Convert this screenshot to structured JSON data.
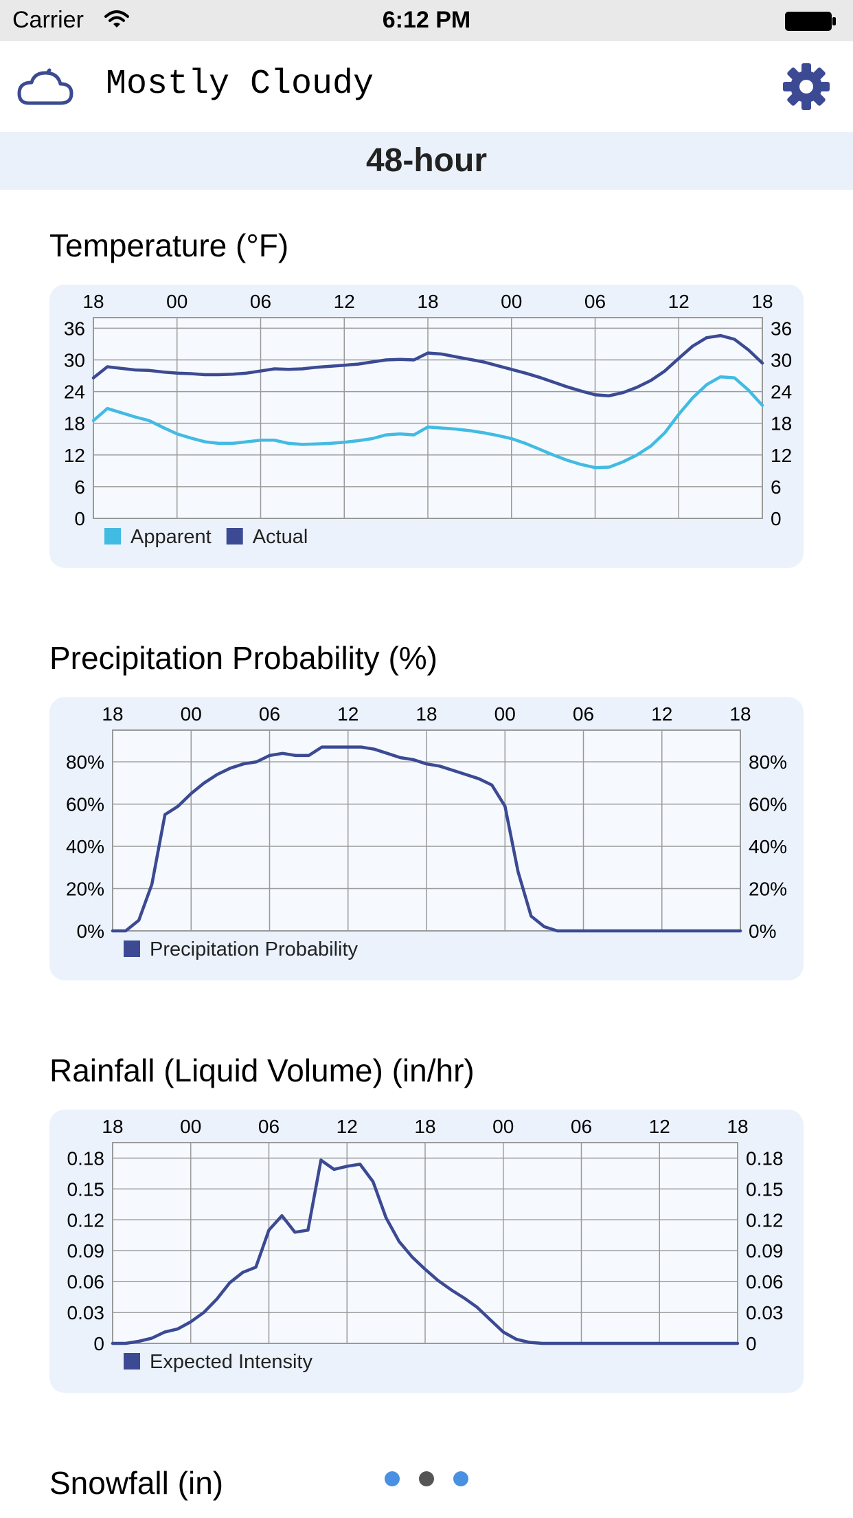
{
  "status_bar": {
    "carrier": "Carrier",
    "time": "6:12 PM"
  },
  "header": {
    "condition": "Mostly Cloudy",
    "weather_icon": "partly-cloudy-night-icon",
    "settings_icon": "gear-icon"
  },
  "period": {
    "label": "48-hour"
  },
  "colors": {
    "accent": "#3b4a92",
    "apparent": "#42bbe2",
    "card": "#ebf2fc",
    "band": "#eaf1fb",
    "dot_active": "#555555",
    "dot_inactive": "#4a90e2"
  },
  "sections": {
    "temperature": {
      "title": "Temperature (°F)"
    },
    "precipitation": {
      "title": "Precipitation Probability (%)"
    },
    "rainfall": {
      "title": "Rainfall (Liquid Volume) (in/hr)"
    },
    "snowfall": {
      "title": "Snowfall (in)"
    }
  },
  "page_indicator": {
    "count": 3,
    "active_index": 1
  },
  "chart_data": [
    {
      "id": "temperature",
      "type": "line",
      "title": "Temperature (°F)",
      "x_tick_labels": [
        "18",
        "00",
        "06",
        "12",
        "18",
        "00",
        "06",
        "12",
        "18"
      ],
      "x_range_hours": [
        0,
        48
      ],
      "y_ticks": [
        0,
        6,
        12,
        18,
        24,
        30,
        36
      ],
      "y_tick_labels": [
        "0",
        "6",
        "12",
        "18",
        "24",
        "30",
        "36"
      ],
      "ylim": [
        0,
        38
      ],
      "legend": [
        "Apparent",
        "Actual"
      ],
      "series": [
        {
          "name": "Apparent",
          "color": "#42bbe2",
          "x": [
            0,
            1,
            2,
            3,
            4,
            5,
            6,
            7,
            8,
            9,
            10,
            11,
            12,
            13,
            14,
            15,
            16,
            17,
            18,
            19,
            20,
            21,
            22,
            23,
            24,
            25,
            26,
            27,
            28,
            29,
            30,
            31,
            32,
            33,
            34,
            35,
            36,
            37,
            38,
            39,
            40,
            41,
            42,
            43,
            44,
            45,
            46,
            47,
            48
          ],
          "y": [
            18.5,
            20.8,
            20,
            19.2,
            18.5,
            17.2,
            16,
            15.2,
            14.5,
            14.2,
            14.2,
            14.5,
            14.8,
            14.8,
            14.2,
            14,
            14.1,
            14.2,
            14.4,
            14.7,
            15.1,
            15.8,
            16,
            15.8,
            17.3,
            17.1,
            16.9,
            16.6,
            16.2,
            15.7,
            15.1,
            14.2,
            13.1,
            12,
            11,
            10.2,
            9.6,
            9.7,
            10.7,
            12,
            13.7,
            16.2,
            19.7,
            22.8,
            25.3,
            26.8,
            26.6,
            24.3,
            21.4
          ]
        },
        {
          "name": "Actual",
          "color": "#3b4a92",
          "x": [
            0,
            1,
            2,
            3,
            4,
            5,
            6,
            7,
            8,
            9,
            10,
            11,
            12,
            13,
            14,
            15,
            16,
            17,
            18,
            19,
            20,
            21,
            22,
            23,
            24,
            25,
            26,
            27,
            28,
            29,
            30,
            31,
            32,
            33,
            34,
            35,
            36,
            37,
            38,
            39,
            40,
            41,
            42,
            43,
            44,
            45,
            46,
            47,
            48
          ],
          "y": [
            26.6,
            28.7,
            28.4,
            28.1,
            28.0,
            27.7,
            27.5,
            27.4,
            27.2,
            27.2,
            27.3,
            27.5,
            27.9,
            28.3,
            28.2,
            28.3,
            28.6,
            28.8,
            29,
            29.2,
            29.6,
            30,
            30.1,
            30,
            31.3,
            31.1,
            30.6,
            30.1,
            29.6,
            28.9,
            28.2,
            27.5,
            26.7,
            25.8,
            24.9,
            24.1,
            23.4,
            23.2,
            23.8,
            24.8,
            26.1,
            27.9,
            30.3,
            32.6,
            34.2,
            34.6,
            33.9,
            31.9,
            29.4
          ]
        }
      ]
    },
    {
      "id": "precipitation",
      "type": "line",
      "title": "Precipitation Probability (%)",
      "x_tick_labels": [
        "18",
        "00",
        "06",
        "12",
        "18",
        "00",
        "06",
        "12",
        "18"
      ],
      "x_range_hours": [
        0,
        48
      ],
      "y_ticks": [
        0,
        20,
        40,
        60,
        80
      ],
      "y_tick_labels": [
        "0%",
        "20%",
        "40%",
        "60%",
        "80%"
      ],
      "ylim": [
        0,
        95
      ],
      "legend": [
        "Precipitation Probability"
      ],
      "series": [
        {
          "name": "Precipitation Probability",
          "color": "#3b4a92",
          "x": [
            0,
            1,
            2,
            3,
            4,
            5,
            6,
            7,
            8,
            9,
            10,
            11,
            12,
            13,
            14,
            15,
            16,
            17,
            18,
            19,
            20,
            21,
            22,
            23,
            24,
            25,
            26,
            27,
            28,
            29,
            30,
            31,
            32,
            33,
            34,
            35,
            36,
            37,
            38,
            39,
            40,
            41,
            42,
            43,
            44,
            45,
            46,
            47,
            48
          ],
          "y": [
            0,
            0,
            5,
            22,
            55,
            59,
            65,
            70,
            74,
            77,
            79,
            80,
            83,
            84,
            83,
            83,
            87,
            87,
            87,
            87,
            86,
            84,
            82,
            81,
            79,
            78,
            76,
            74,
            72,
            69,
            59,
            28,
            7,
            2,
            0,
            0,
            0,
            0,
            0,
            0,
            0,
            0,
            0,
            0,
            0,
            0,
            0,
            0,
            0
          ]
        }
      ]
    },
    {
      "id": "rainfall",
      "type": "line",
      "title": "Rainfall (Liquid Volume) (in/hr)",
      "x_tick_labels": [
        "18",
        "00",
        "06",
        "12",
        "18",
        "00",
        "06",
        "12",
        "18"
      ],
      "x_range_hours": [
        0,
        48
      ],
      "y_ticks": [
        0,
        0.03,
        0.06,
        0.09,
        0.12,
        0.15,
        0.18
      ],
      "y_tick_labels": [
        "0",
        "0.03",
        "0.06",
        "0.09",
        "0.12",
        "0.15",
        "0.18"
      ],
      "ylim": [
        0,
        0.195
      ],
      "legend": [
        "Expected Intensity"
      ],
      "series": [
        {
          "name": "Expected Intensity",
          "color": "#3b4a92",
          "x": [
            0,
            1,
            2,
            3,
            4,
            5,
            6,
            7,
            8,
            9,
            10,
            11,
            12,
            13,
            14,
            15,
            16,
            17,
            18,
            19,
            20,
            21,
            22,
            23,
            24,
            25,
            26,
            27,
            28,
            29,
            30,
            31,
            32,
            33,
            34,
            35,
            36,
            37,
            38,
            39,
            40,
            41,
            42,
            43,
            44,
            45,
            46,
            47,
            48
          ],
          "y": [
            0,
            0,
            0.002,
            0.005,
            0.011,
            0.014,
            0.021,
            0.03,
            0.043,
            0.059,
            0.069,
            0.074,
            0.11,
            0.124,
            0.108,
            0.11,
            0.178,
            0.169,
            0.172,
            0.174,
            0.157,
            0.122,
            0.099,
            0.084,
            0.072,
            0.061,
            0.052,
            0.044,
            0.035,
            0.023,
            0.011,
            0.004,
            0.001,
            0,
            0,
            0,
            0,
            0,
            0,
            0,
            0,
            0,
            0,
            0,
            0,
            0,
            0,
            0,
            0
          ]
        }
      ]
    }
  ]
}
